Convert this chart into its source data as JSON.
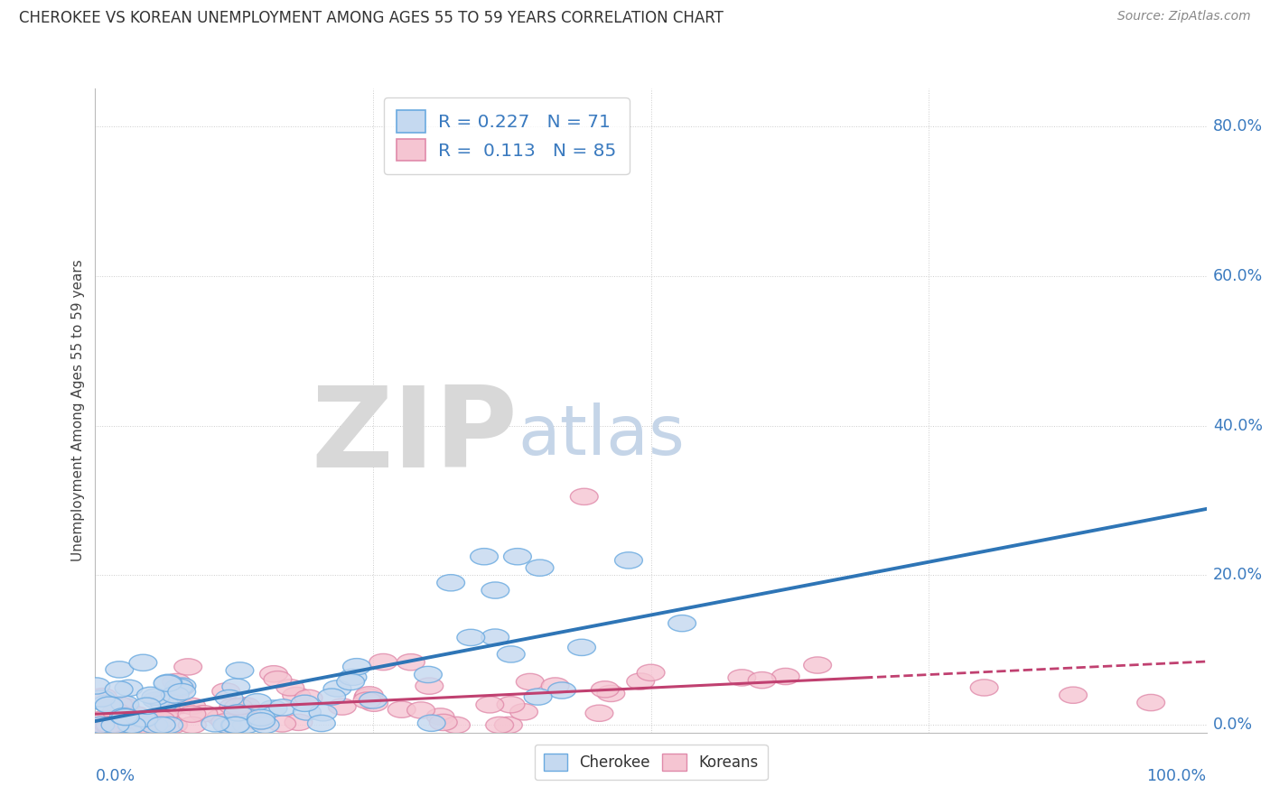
{
  "title": "CHEROKEE VS KOREAN UNEMPLOYMENT AMONG AGES 55 TO 59 YEARS CORRELATION CHART",
  "source": "Source: ZipAtlas.com",
  "ylabel": "Unemployment Among Ages 55 to 59 years",
  "cherokee_R": 0.227,
  "cherokee_N": 71,
  "korean_R": 0.113,
  "korean_N": 85,
  "cherokee_fill": "#c5d9f0",
  "cherokee_edge": "#6aaae0",
  "cherokee_line": "#2e75b6",
  "korean_fill": "#f5c5d2",
  "korean_edge": "#e08aaa",
  "korean_line": "#c04070",
  "background_color": "#ffffff",
  "grid_color": "#cccccc",
  "ytick_labels": [
    "80.0%",
    "60.0%",
    "40.0%",
    "20.0%",
    "0.0%"
  ],
  "ytick_vals": [
    0.8,
    0.6,
    0.4,
    0.2,
    0.0
  ],
  "xlim": [
    0.0,
    1.0
  ],
  "ylim": [
    -0.01,
    0.85
  ]
}
